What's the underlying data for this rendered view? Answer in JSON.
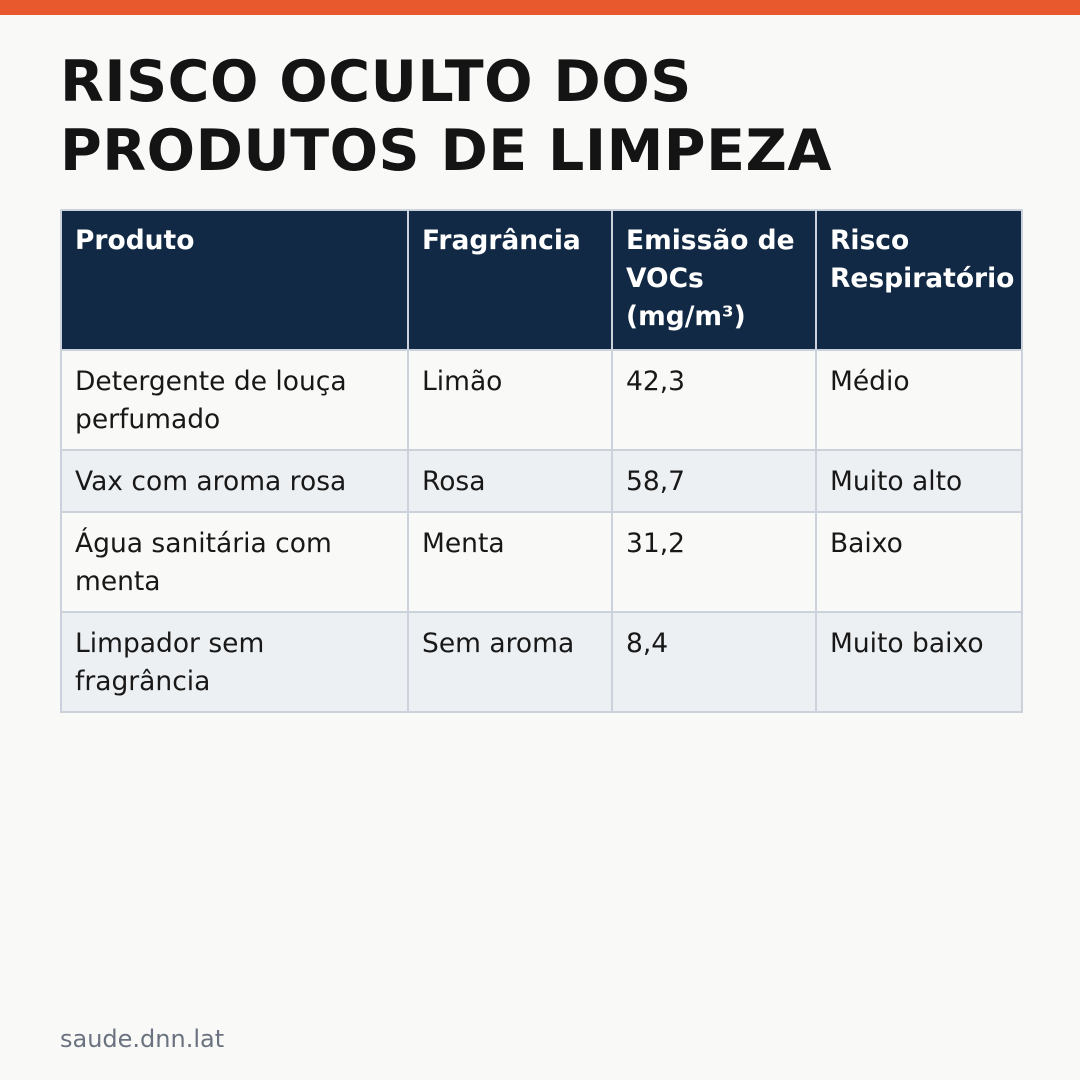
{
  "brand": {
    "accent_color": "#e85a2e",
    "header_color": "#112944"
  },
  "title_lines": [
    "RISCO OCULTO DOS",
    "PRODUTOS DE LIMPEZA"
  ],
  "table": {
    "headers": [
      "Produto",
      "Fragrância",
      "Emissão de VOCs (mg/m³)",
      "Risco Respiratório"
    ],
    "rows": [
      [
        "Detergente de louça perfumado",
        "Limão",
        "42,3",
        "Médio"
      ],
      [
        "Vax com aroma rosa",
        "Rosa",
        "58,7",
        "Muito alto"
      ],
      [
        "Água sanitária com menta",
        "Menta",
        "31,2",
        "Baixo"
      ],
      [
        "Limpador sem fragrância",
        "Sem aroma",
        "8,4",
        "Muito baixo"
      ]
    ]
  },
  "footer": {
    "source": "saude.dnn.lat"
  }
}
